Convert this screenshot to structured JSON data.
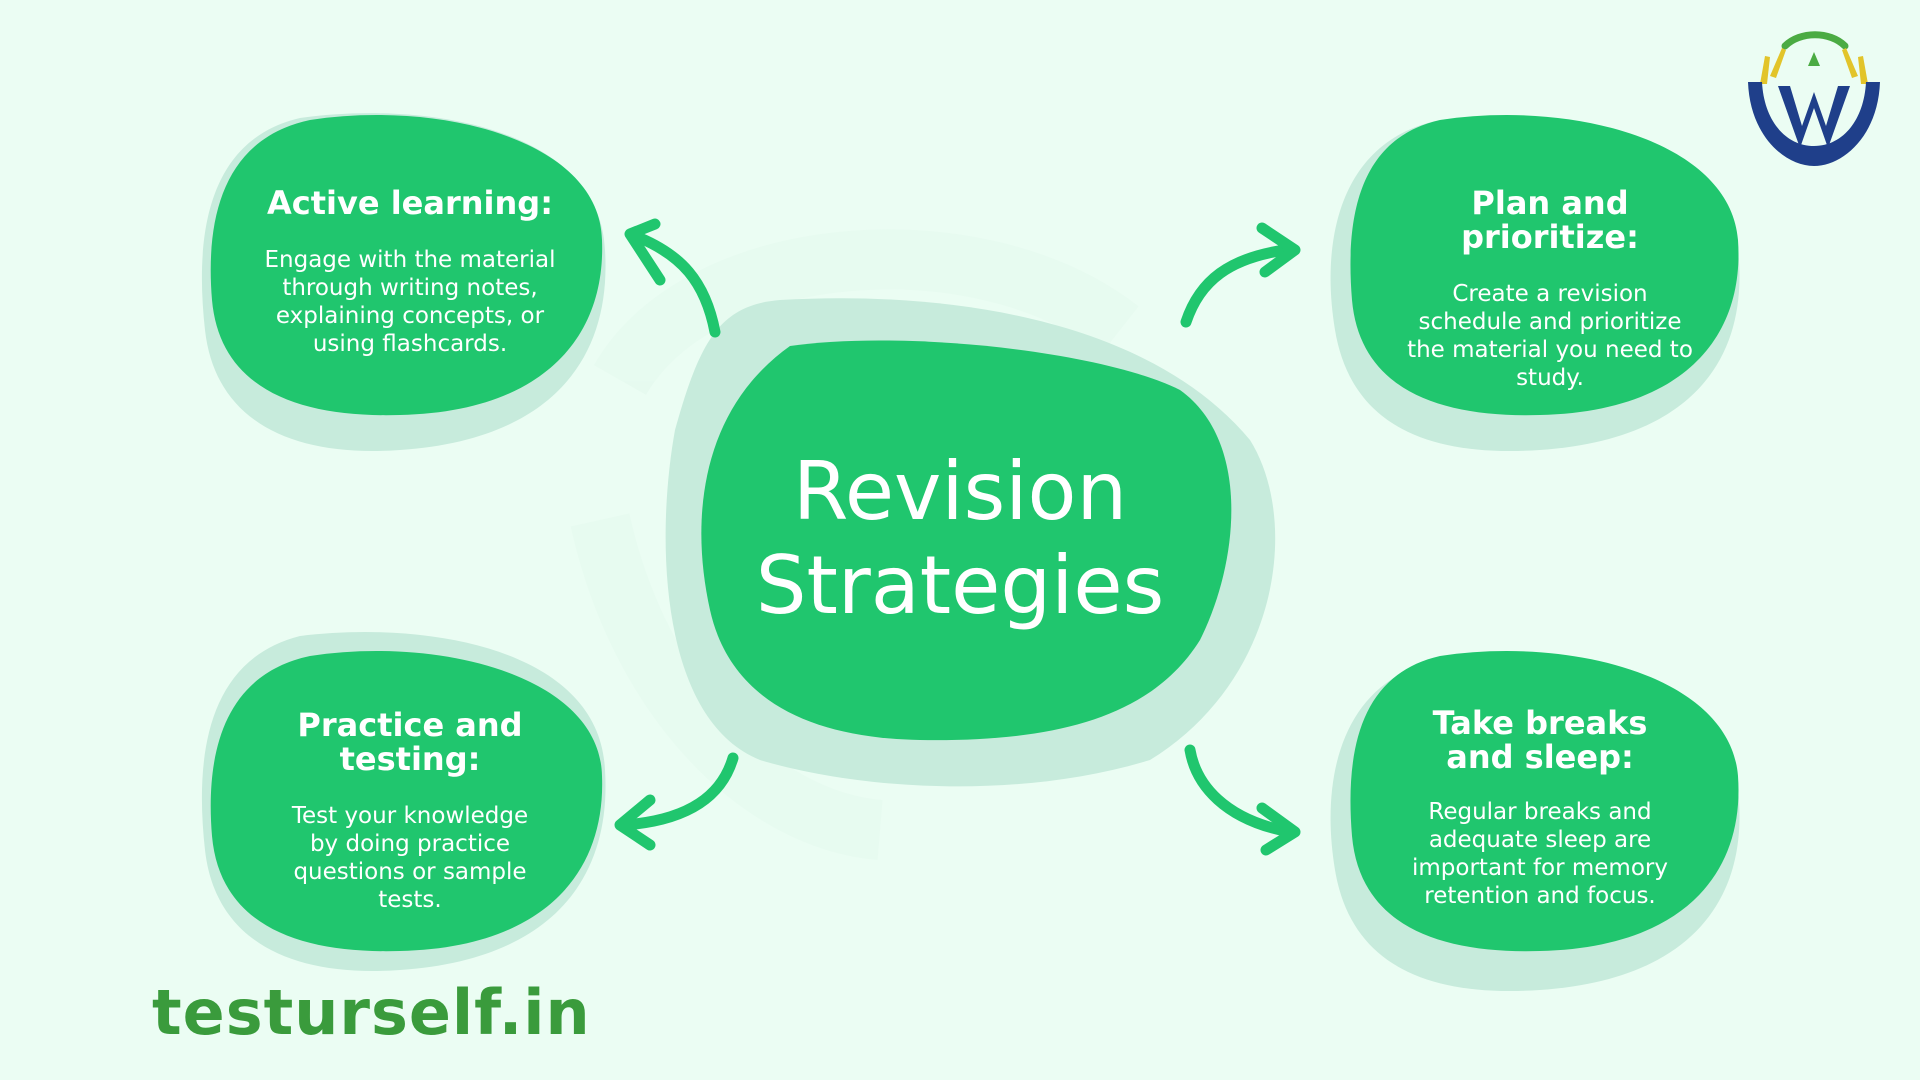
{
  "colors": {
    "background": "#ebfdf3",
    "blob": "#20c66e",
    "blob_shadow": "#c7ebdc",
    "arrow": "#20c66e",
    "brand": "#3a9b3c",
    "logo_navy": "#1f3f8a",
    "logo_yellow": "#e2c42a",
    "logo_green": "#4bab43"
  },
  "center": {
    "line1": "Revision",
    "line2": "Strategies"
  },
  "cards": {
    "active": {
      "title": "Active learning:",
      "desc": "Engage with the material through writing notes, explaining concepts, or using flashcards."
    },
    "plan": {
      "title": "Plan and prioritize:",
      "desc": "Create a revision schedule and prioritize the material you need to study."
    },
    "practice": {
      "title_line1": "Practice and",
      "title_line2": "testing:",
      "desc": "Test your knowledge by doing practice questions or sample tests."
    },
    "breaks": {
      "title_line1": "Take breaks",
      "title_line2": "and sleep:",
      "desc": "Regular breaks and adequate sleep are important for memory retention and focus."
    }
  },
  "brand": {
    "url": "testurself.in"
  },
  "icons": [
    "logo-icon",
    "arrow-icon"
  ]
}
